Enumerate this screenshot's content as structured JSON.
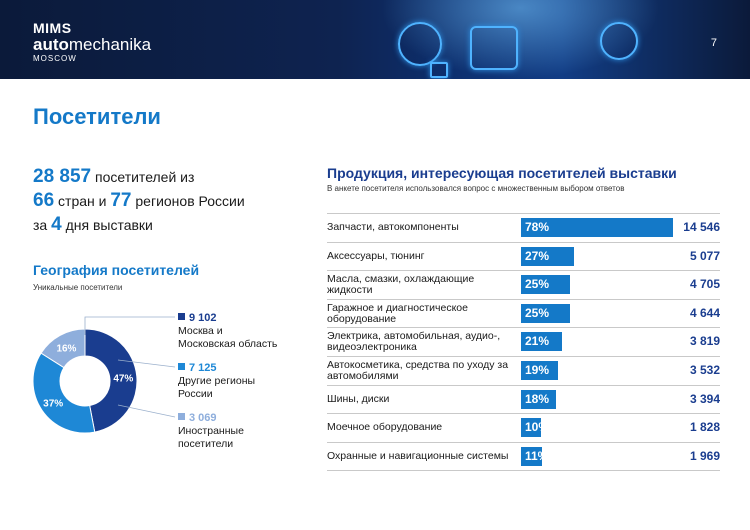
{
  "header": {
    "brand_line1": "MIMS",
    "brand_line2_bold": "auto",
    "brand_line2_rest": "mechanika",
    "brand_line3": "MOSCOW",
    "page_number": "7"
  },
  "title": "Посетители",
  "stats": {
    "visitors_num": "28 857",
    "visitors_text": "посетителей из",
    "countries_num": "66",
    "countries_text": "стран и",
    "regions_num": "77",
    "regions_text": "регионов России",
    "days_pre": "за",
    "days_num": "4",
    "days_text": "дня выставки"
  },
  "geography": {
    "title": "География посетителей",
    "subtitle": "Уникальные посетители",
    "legend": [
      {
        "value": "9 102",
        "label_line1": "Москва и",
        "label_line2": "Московская область",
        "color": "#1a3d8f"
      },
      {
        "value": "7 125",
        "label_line1": "Другие регионы",
        "label_line2": "России",
        "color": "#1e88d6"
      },
      {
        "value": "3 069",
        "label_line1": "Иностранные",
        "label_line2": "посетители",
        "color": "#8eaedc"
      }
    ]
  },
  "products": {
    "title": "Продукция, интересующая посетителей выставки",
    "subtitle": "В анкете посетителя использовался вопрос с множественным выбором ответов"
  },
  "chart_data": [
    {
      "type": "pie",
      "style": "donut",
      "slices": [
        {
          "label": "Москва и Московская область",
          "value": 47,
          "display": "47%",
          "color": "#1a3d8f"
        },
        {
          "label": "Другие регионы России",
          "value": 37,
          "display": "37%",
          "color": "#1e88d6"
        },
        {
          "label": "Иностранные посетители",
          "value": 16,
          "display": "16%",
          "color": "#8eaedc"
        }
      ]
    },
    {
      "type": "bar",
      "orientation": "horizontal",
      "color": "#1479c8",
      "xlim": [
        0,
        100
      ],
      "categories": [
        "Запчасти, автокомпоненты",
        "Аксессуары, тюнинг",
        "Масла, смазки, охлаждающие жидкости",
        "Гаражное и диагностическое оборудование",
        "Электрика, автомобильная, аудио-, видеоэлектроника",
        "Автокосметика, средства по уходу за автомобилями",
        "Шины, диски",
        "Моечное оборудование",
        "Охранные и навигационные системы"
      ],
      "values": [
        78,
        27,
        25,
        25,
        21,
        19,
        18,
        10,
        11
      ],
      "value_labels": [
        "78%",
        "27%",
        "25%",
        "25%",
        "21%",
        "19%",
        "18%",
        "10%",
        "11%"
      ],
      "counts": [
        "14 546",
        "5 077",
        "4 705",
        "4 644",
        "3 819",
        "3 532",
        "3 394",
        "1 828",
        "1 969"
      ]
    }
  ]
}
